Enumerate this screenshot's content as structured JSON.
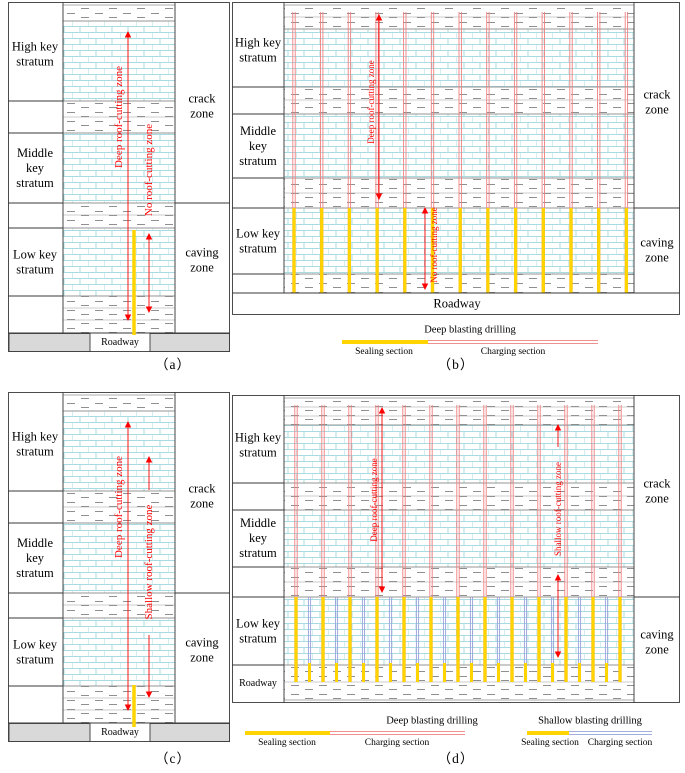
{
  "figure": {
    "captions": {
      "a": "（a）",
      "b": "（b）",
      "c": "（c）",
      "d": "（d）"
    }
  },
  "strata": {
    "high": "High key stratum",
    "middle": "Middle key stratum",
    "low": "Low key stratum",
    "roadway": "Roadway",
    "crack": "crack zone",
    "caving": "caving zone"
  },
  "annotations": {
    "deep": "Deep roof-cutting zone",
    "none": "No roof-cutting zone",
    "shallow": "Shallow roof-cutting zone"
  },
  "legend": {
    "deep_title": "Deep blasting drilling",
    "shallow_title": "Shallow blasting drilling",
    "sealing": "Sealing section",
    "charging": "Charging section"
  },
  "colors": {
    "deep_line": "#f08080",
    "shallow_line": "#97a2da",
    "sealing": "#ffd400",
    "annotation": "#ff0000",
    "brick": "#a9dce2",
    "roadway_block": "#d9d9d9"
  }
}
